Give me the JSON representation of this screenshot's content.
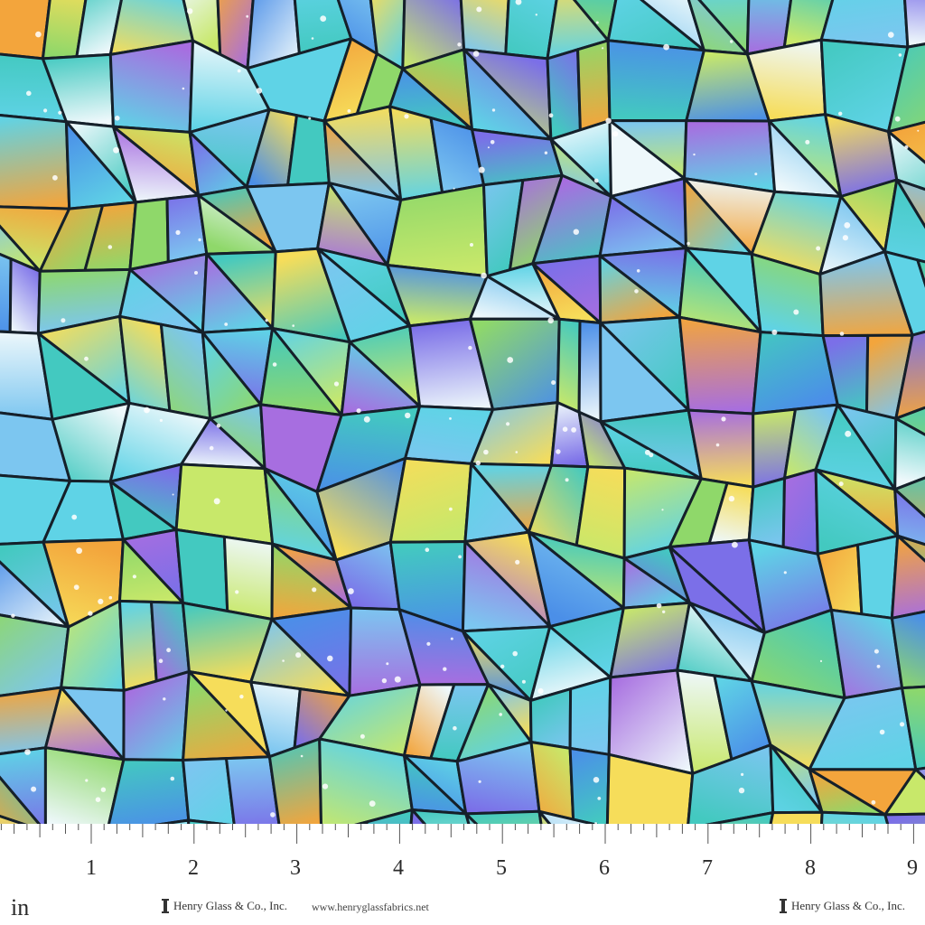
{
  "ruler": {
    "unit": "in",
    "numbers": [
      "1",
      "2",
      "3",
      "4",
      "5",
      "6",
      "7",
      "8",
      "9"
    ]
  },
  "footer": {
    "brand_left": "Henry Glass & Co., Inc.",
    "url": "www.henryglassfabrics.net",
    "brand_right": "Henry Glass & Co., Inc."
  },
  "palette": {
    "aqua": "#5fd3e6",
    "sky": "#7cc6f0",
    "teal": "#43c9c0",
    "green": "#8fd86a",
    "lime": "#c8e86a",
    "yellow": "#f6dd5a",
    "orange": "#f3a53c",
    "purple": "#a76ee0",
    "violet": "#7b6fe8",
    "blue": "#4b8fe8",
    "white": "#eef8fb",
    "lead": "#15202a"
  }
}
